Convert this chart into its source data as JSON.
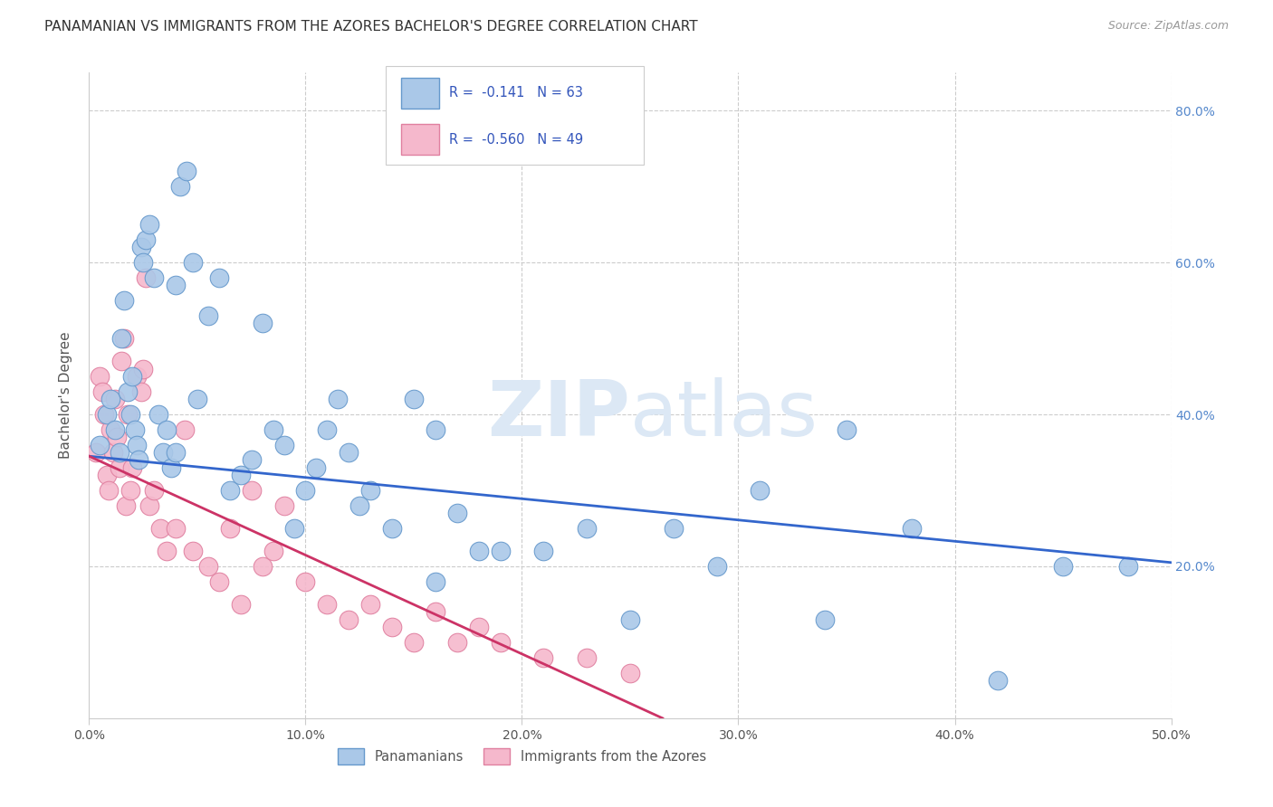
{
  "title": "PANAMANIAN VS IMMIGRANTS FROM THE AZORES BACHELOR'S DEGREE CORRELATION CHART",
  "source": "Source: ZipAtlas.com",
  "ylabel": "Bachelor's Degree",
  "xmin": 0.0,
  "xmax": 0.5,
  "ymin": 0.0,
  "ymax": 0.85,
  "xticks": [
    0.0,
    0.1,
    0.2,
    0.3,
    0.4,
    0.5
  ],
  "yticks": [
    0.0,
    0.2,
    0.4,
    0.6,
    0.8
  ],
  "blue_scatter_x": [
    0.005,
    0.008,
    0.01,
    0.012,
    0.014,
    0.015,
    0.016,
    0.018,
    0.019,
    0.02,
    0.021,
    0.022,
    0.023,
    0.024,
    0.025,
    0.026,
    0.028,
    0.03,
    0.032,
    0.034,
    0.036,
    0.038,
    0.04,
    0.042,
    0.045,
    0.048,
    0.05,
    0.055,
    0.06,
    0.065,
    0.07,
    0.075,
    0.08,
    0.085,
    0.09,
    0.095,
    0.1,
    0.105,
    0.11,
    0.115,
    0.12,
    0.125,
    0.13,
    0.14,
    0.15,
    0.16,
    0.17,
    0.18,
    0.19,
    0.21,
    0.23,
    0.25,
    0.27,
    0.29,
    0.31,
    0.34,
    0.38,
    0.42,
    0.45,
    0.48,
    0.35,
    0.16,
    0.04
  ],
  "blue_scatter_y": [
    0.36,
    0.4,
    0.42,
    0.38,
    0.35,
    0.5,
    0.55,
    0.43,
    0.4,
    0.45,
    0.38,
    0.36,
    0.34,
    0.62,
    0.6,
    0.63,
    0.65,
    0.58,
    0.4,
    0.35,
    0.38,
    0.33,
    0.35,
    0.7,
    0.72,
    0.6,
    0.42,
    0.53,
    0.58,
    0.3,
    0.32,
    0.34,
    0.52,
    0.38,
    0.36,
    0.25,
    0.3,
    0.33,
    0.38,
    0.42,
    0.35,
    0.28,
    0.3,
    0.25,
    0.42,
    0.38,
    0.27,
    0.22,
    0.22,
    0.22,
    0.25,
    0.13,
    0.25,
    0.2,
    0.3,
    0.13,
    0.25,
    0.05,
    0.2,
    0.2,
    0.38,
    0.18,
    0.57
  ],
  "pink_scatter_x": [
    0.003,
    0.005,
    0.006,
    0.007,
    0.008,
    0.009,
    0.01,
    0.011,
    0.012,
    0.013,
    0.014,
    0.015,
    0.016,
    0.017,
    0.018,
    0.019,
    0.02,
    0.022,
    0.024,
    0.026,
    0.028,
    0.03,
    0.033,
    0.036,
    0.04,
    0.044,
    0.048,
    0.055,
    0.06,
    0.065,
    0.07,
    0.075,
    0.08,
    0.085,
    0.09,
    0.1,
    0.11,
    0.12,
    0.13,
    0.14,
    0.15,
    0.16,
    0.17,
    0.18,
    0.19,
    0.21,
    0.23,
    0.25,
    0.025
  ],
  "pink_scatter_y": [
    0.35,
    0.45,
    0.43,
    0.4,
    0.32,
    0.3,
    0.38,
    0.35,
    0.42,
    0.37,
    0.33,
    0.47,
    0.5,
    0.28,
    0.4,
    0.3,
    0.33,
    0.45,
    0.43,
    0.58,
    0.28,
    0.3,
    0.25,
    0.22,
    0.25,
    0.38,
    0.22,
    0.2,
    0.18,
    0.25,
    0.15,
    0.3,
    0.2,
    0.22,
    0.28,
    0.18,
    0.15,
    0.13,
    0.15,
    0.12,
    0.1,
    0.14,
    0.1,
    0.12,
    0.1,
    0.08,
    0.08,
    0.06,
    0.46
  ],
  "blue_line_x": [
    0.0,
    0.5
  ],
  "blue_line_y": [
    0.345,
    0.205
  ],
  "pink_line_x": [
    0.0,
    0.265
  ],
  "pink_line_y": [
    0.345,
    0.0
  ],
  "blue_line_color": "#3366cc",
  "pink_line_color": "#cc3366",
  "scatter_blue_color": "#aac8e8",
  "scatter_pink_color": "#f5b8cc",
  "scatter_blue_edge": "#6699cc",
  "scatter_pink_edge": "#e080a0",
  "bg_color": "#ffffff",
  "grid_color": "#cccccc",
  "title_color": "#333333",
  "axis_color": "#555555",
  "right_tick_color": "#5588cc",
  "watermark_zip": "ZIP",
  "watermark_atlas": "atlas",
  "watermark_color": "#dce8f5",
  "watermark_fontsize": 62,
  "legend_series": [
    {
      "label": "Panamanians",
      "color_fill": "#aac8e8",
      "color_edge": "#6699cc",
      "r": "-0.141",
      "n": "63"
    },
    {
      "label": "Immigrants from the Azores",
      "color_fill": "#f5b8cc",
      "color_edge": "#e080a0",
      "r": "-0.560",
      "n": "49"
    }
  ]
}
